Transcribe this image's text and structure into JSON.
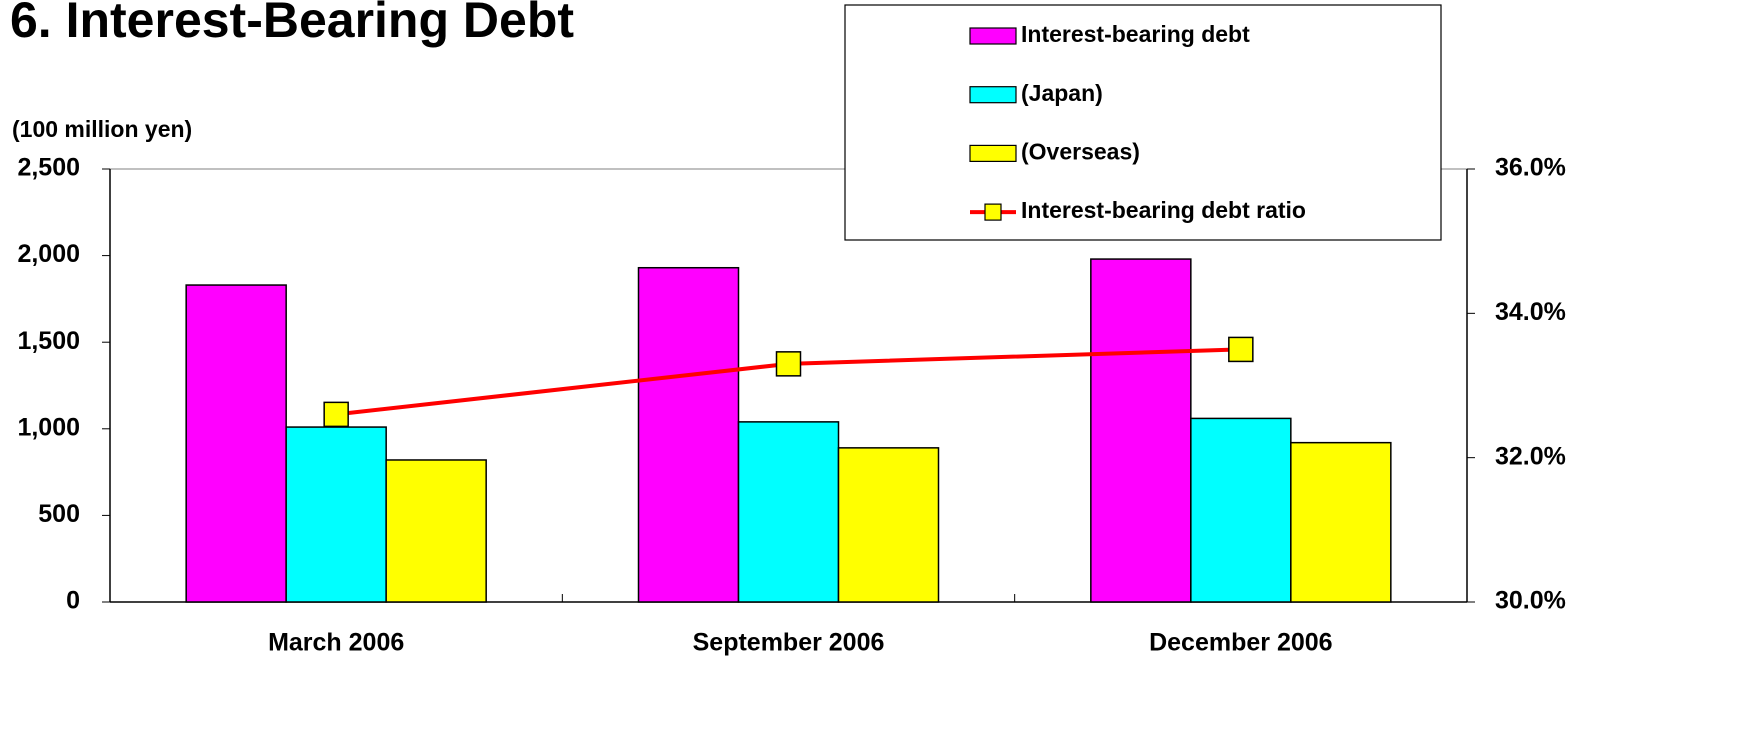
{
  "chart_data": {
    "type": "bar",
    "title": "6. Interest-Bearing Debt",
    "y_axis_label": "(100 million yen)",
    "categories": [
      "March 2006",
      "September 2006",
      "December 2006"
    ],
    "series": [
      {
        "name": "Interest-bearing debt",
        "color": "#ff00ff",
        "values": [
          1830,
          1930,
          1980
        ]
      },
      {
        "name": "(Japan)",
        "color": "#00ffff",
        "values": [
          1010,
          1040,
          1060
        ]
      },
      {
        "name": "(Overseas)",
        "color": "#ffff00",
        "values": [
          820,
          890,
          920
        ]
      },
      {
        "name": "Interest-bearing debt ratio",
        "type": "line",
        "axis": "y2",
        "color": "#ff0000",
        "marker_color": "#ffff00",
        "values": [
          32.6,
          33.3,
          33.5
        ]
      }
    ],
    "ylim": [
      0,
      2500
    ],
    "yticks": [
      0,
      500,
      {
        "value": 1000,
        "label": "1,000"
      },
      {
        "value": 1500,
        "label": "1,500"
      },
      {
        "value": 2000,
        "label": "2,000"
      },
      {
        "value": 2500,
        "label": "2,500"
      }
    ],
    "y2lim": [
      30,
      36
    ],
    "y2ticks": [
      {
        "value": 30,
        "label": "30.0%"
      },
      {
        "value": 32,
        "label": "32.0%"
      },
      {
        "value": 34,
        "label": "34.0%"
      },
      {
        "value": 36,
        "label": "36.0%"
      }
    ],
    "grid": false,
    "legend": "top-right"
  }
}
